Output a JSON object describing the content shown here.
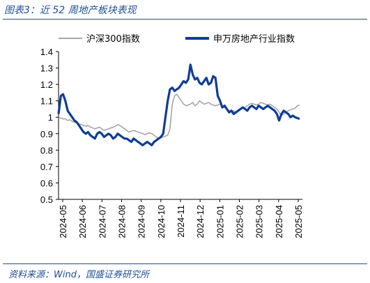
{
  "header": {
    "title": "图表3：近 52 周地产板块表现"
  },
  "footer": {
    "source": "资料来源：Wind，国盛证券研究所"
  },
  "chart_data": {
    "type": "line",
    "title": "",
    "xlabel": "",
    "ylabel": "",
    "ylim": [
      0.5,
      1.4
    ],
    "y_ticks": [
      "1.4",
      "1.3",
      "1.2",
      "1.1",
      "1",
      "0.9",
      "0.8",
      "0.7",
      "0.6",
      "0.5"
    ],
    "x_ticks": [
      "2024-05",
      "2024-06",
      "2024-07",
      "2024-08",
      "2024-09",
      "2024-10",
      "2024-11",
      "2024-12",
      "2025-01",
      "2025-02",
      "2025-03",
      "2025-04",
      "2025-05"
    ],
    "grid": false,
    "legend_position": "top",
    "series": [
      {
        "name": "沪深300指数",
        "color": "#a6a6a6",
        "values": [
          1.0,
          0.995,
          0.99,
          0.99,
          0.98,
          0.985,
          0.975,
          0.97,
          0.965,
          0.96,
          0.955,
          0.95,
          0.945,
          0.95,
          0.94,
          0.935,
          0.93,
          0.935,
          0.94,
          0.93,
          0.92,
          0.925,
          0.93,
          0.935,
          0.94,
          0.945,
          0.955,
          0.95,
          0.94,
          0.93,
          0.92,
          0.91,
          0.915,
          0.92,
          0.915,
          0.91,
          0.905,
          0.9,
          0.895,
          0.9,
          0.905,
          0.9,
          0.89,
          0.88,
          0.87,
          0.875,
          0.88,
          0.885,
          0.89,
          0.93,
          1.08,
          1.13,
          1.14,
          1.12,
          1.1,
          1.08,
          1.07,
          1.075,
          1.08,
          1.09,
          1.07,
          1.08,
          1.1,
          1.09,
          1.08,
          1.085,
          1.09,
          1.08,
          1.075,
          1.07,
          1.075,
          1.08,
          1.07,
          1.06,
          1.05,
          1.04,
          1.035,
          1.04,
          1.03,
          1.04,
          1.05,
          1.055,
          1.06,
          1.07,
          1.08,
          1.085,
          1.08,
          1.075,
          1.08,
          1.09,
          1.085,
          1.08,
          1.075,
          1.08,
          1.07,
          1.06,
          1.05,
          1.03,
          1.01,
          1.02,
          1.03,
          1.04,
          1.045,
          1.05,
          1.055,
          1.07,
          1.075
        ]
      },
      {
        "name": "申万房地产行业指数",
        "color": "#0f3c96",
        "values": [
          1.02,
          1.13,
          1.14,
          1.1,
          1.04,
          1.02,
          1.0,
          0.98,
          0.97,
          0.95,
          0.93,
          0.91,
          0.9,
          0.91,
          0.89,
          0.88,
          0.87,
          0.9,
          0.91,
          0.9,
          0.88,
          0.89,
          0.9,
          0.89,
          0.87,
          0.88,
          0.9,
          0.89,
          0.88,
          0.87,
          0.87,
          0.86,
          0.85,
          0.87,
          0.86,
          0.85,
          0.84,
          0.83,
          0.84,
          0.85,
          0.84,
          0.83,
          0.85,
          0.86,
          0.87,
          0.88,
          0.9,
          1.0,
          1.1,
          1.17,
          1.18,
          1.16,
          1.17,
          1.18,
          1.2,
          1.22,
          1.21,
          1.23,
          1.32,
          1.26,
          1.23,
          1.24,
          1.21,
          1.2,
          1.22,
          1.24,
          1.2,
          1.21,
          1.25,
          1.24,
          1.13,
          1.1,
          1.06,
          1.07,
          1.05,
          1.03,
          1.04,
          1.02,
          1.03,
          1.04,
          1.05,
          1.06,
          1.05,
          1.04,
          1.06,
          1.07,
          1.06,
          1.05,
          1.07,
          1.06,
          1.05,
          1.06,
          1.07,
          1.06,
          1.05,
          1.04,
          1.02,
          0.98,
          1.02,
          1.04,
          1.03,
          1.02,
          1.0,
          1.01,
          1.0,
          0.995,
          0.99
        ]
      }
    ]
  }
}
